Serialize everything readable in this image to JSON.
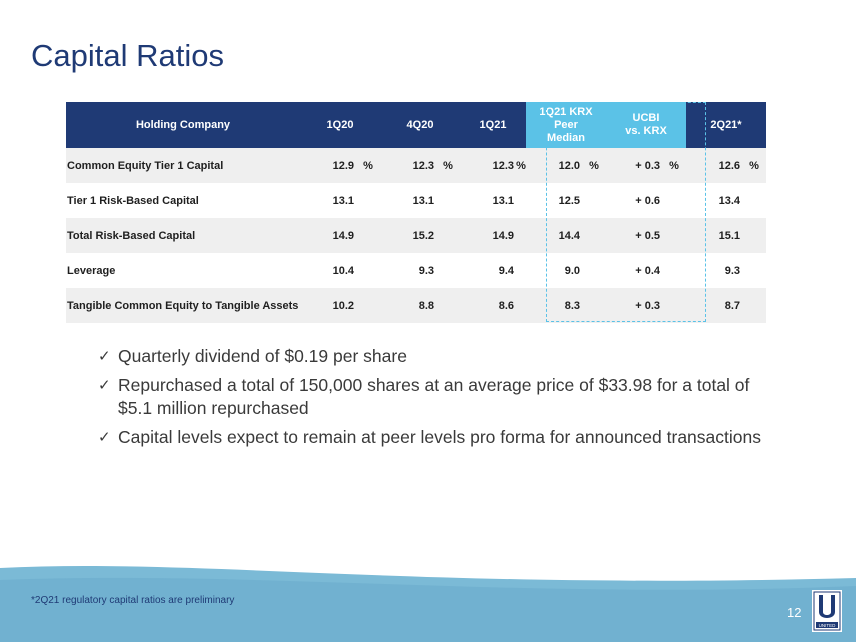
{
  "title": "Capital Ratios",
  "table": {
    "headers": [
      "Holding Company",
      "1Q20",
      "4Q20",
      "1Q21",
      "1Q21 KRX Peer Median",
      "UCBI vs. KRX",
      "2Q21*"
    ],
    "header_lines": {
      "peer": [
        "1Q21 KRX Peer",
        "Median"
      ],
      "ucbi": [
        "UCBI",
        "vs. KRX"
      ]
    },
    "pct_sign": "%",
    "rows": [
      {
        "label": "Common Equity Tier 1 Capital",
        "q1_20": "12.9",
        "q4_20": "12.3",
        "q1_21": "12.3",
        "peer": "12.0",
        "vs": "+ 0.3",
        "q2_21": "12.6",
        "show_pct": true
      },
      {
        "label": "Tier 1 Risk-Based Capital",
        "q1_20": "13.1",
        "q4_20": "13.1",
        "q1_21": "13.1",
        "peer": "12.5",
        "vs": "+ 0.6",
        "q2_21": "13.4",
        "show_pct": false
      },
      {
        "label": "Total Risk-Based Capital",
        "q1_20": "14.9",
        "q4_20": "15.2",
        "q1_21": "14.9",
        "peer": "14.4",
        "vs": "+ 0.5",
        "q2_21": "15.1",
        "show_pct": false
      },
      {
        "label": "Leverage",
        "q1_20": "10.4",
        "q4_20": "9.3",
        "q1_21": "9.4",
        "peer": "9.0",
        "vs": "+ 0.4",
        "q2_21": "9.3",
        "show_pct": false
      },
      {
        "label": "Tangible Common Equity to Tangible Assets",
        "q1_20": "10.2",
        "q4_20": "8.8",
        "q1_21": "8.6",
        "peer": "8.3",
        "vs": "+ 0.3",
        "q2_21": "8.7",
        "show_pct": false
      }
    ]
  },
  "bullets": [
    "Quarterly dividend of $0.19 per share",
    "Repurchased a total of 150,000 shares at an average price of $33.98 for a total of $5.1 million repurchased",
    "Capital levels expect to remain at peer levels pro forma for announced transactions"
  ],
  "check_glyph": "✓",
  "footnote": "*2Q21 regulatory capital ratios are preliminary",
  "page_number": "12",
  "logo": {
    "letter": "U",
    "word": "UNITED"
  },
  "colors": {
    "navy": "#1f3a75",
    "peer_blue": "#5bc2e7",
    "footer_blue": "#7bbad6"
  }
}
